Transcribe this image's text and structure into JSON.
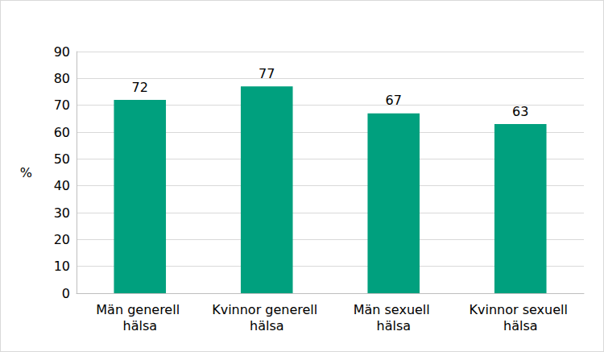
{
  "chart_data": {
    "type": "bar",
    "categories": [
      "Män generell hälsa",
      "Kvinnor generell hälsa",
      "Män sexuell hälsa",
      "Kvinnor sexuell hälsa"
    ],
    "values": [
      72,
      77,
      67,
      63
    ],
    "color": "#00a07e",
    "ylabel": "%",
    "ylim": [
      0,
      90
    ],
    "yticks": [
      0,
      10,
      20,
      30,
      40,
      50,
      60,
      70,
      80,
      90
    ],
    "grid": true,
    "data_labels": true
  }
}
